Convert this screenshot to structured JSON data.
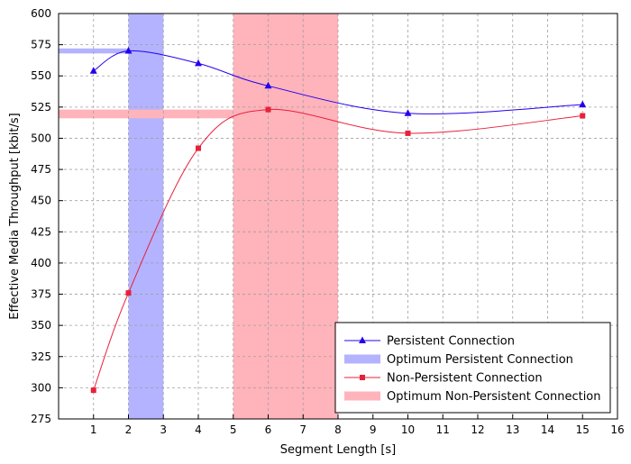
{
  "chart_data": {
    "type": "line",
    "title": "",
    "xlabel": "Segment Length [s]",
    "ylabel": "Effective Media Throughput  [kbit/s]",
    "xlim": [
      0,
      16
    ],
    "ylim": [
      275,
      600
    ],
    "xticks": [
      1,
      2,
      3,
      4,
      5,
      6,
      7,
      8,
      9,
      10,
      11,
      12,
      13,
      14,
      15,
      16
    ],
    "yticks": [
      275,
      300,
      325,
      350,
      375,
      400,
      425,
      450,
      475,
      500,
      525,
      550,
      575,
      600
    ],
    "grid": true,
    "legend_position": "bottom-right",
    "series": [
      {
        "name": "Persistent Connection",
        "color": "#2200ee",
        "marker": "triangle",
        "x": [
          1,
          2,
          4,
          6,
          10,
          15
        ],
        "y": [
          554,
          570,
          560,
          542,
          520,
          527
        ]
      },
      {
        "name": "Non-Persistent Connection",
        "color": "#e8203a",
        "marker": "square",
        "x": [
          1,
          2,
          4,
          6,
          10,
          15
        ],
        "y": [
          298,
          376,
          492,
          523,
          504,
          518
        ]
      }
    ],
    "optimum_regions": [
      {
        "name": "Optimum Persistent Connection",
        "color": "#b3b3ff",
        "x_range": [
          2,
          3
        ],
        "y_band": [
          568,
          572
        ]
      },
      {
        "name": "Optimum Non-Persistent Connection",
        "color": "#ffb3bb",
        "x_range": [
          5,
          8
        ],
        "y_band": [
          516,
          523
        ]
      }
    ]
  }
}
